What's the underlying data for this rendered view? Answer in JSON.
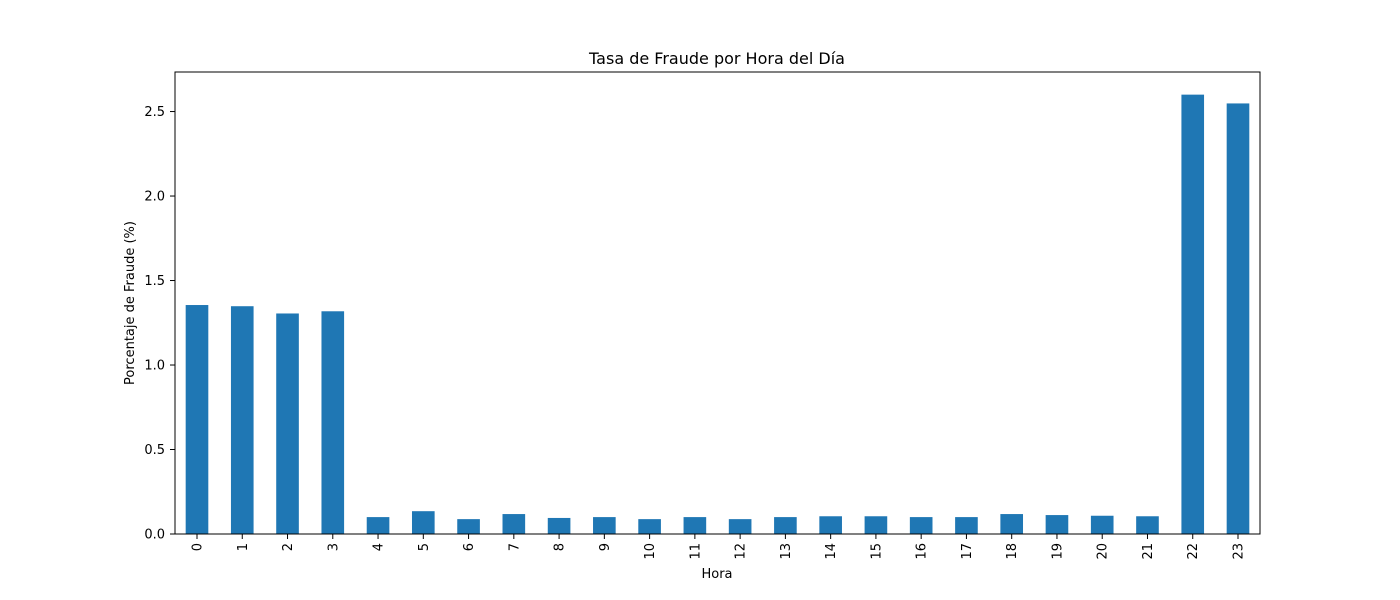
{
  "chart_data": {
    "type": "bar",
    "title": "Tasa de Fraude por Hora del Día",
    "xlabel": "Hora",
    "ylabel": "Porcentaje de Fraude (%)",
    "categories": [
      "0",
      "1",
      "2",
      "3",
      "4",
      "5",
      "6",
      "7",
      "8",
      "9",
      "10",
      "11",
      "12",
      "13",
      "14",
      "15",
      "16",
      "17",
      "18",
      "19",
      "20",
      "21",
      "22",
      "23"
    ],
    "values": [
      1.355,
      1.348,
      1.305,
      1.318,
      0.1,
      0.135,
      0.088,
      0.118,
      0.095,
      0.1,
      0.088,
      0.1,
      0.088,
      0.1,
      0.105,
      0.105,
      0.1,
      0.1,
      0.118,
      0.112,
      0.108,
      0.105,
      2.6,
      2.548
    ],
    "ylim": [
      0,
      2.734
    ],
    "yticks": [
      0.0,
      0.5,
      1.0,
      1.5,
      2.0,
      2.5
    ],
    "ytick_labels": [
      "0.0",
      "0.5",
      "1.0",
      "1.5",
      "2.0",
      "2.5"
    ],
    "bar_color": "#1f77b4",
    "grid": false,
    "legend": "none"
  }
}
